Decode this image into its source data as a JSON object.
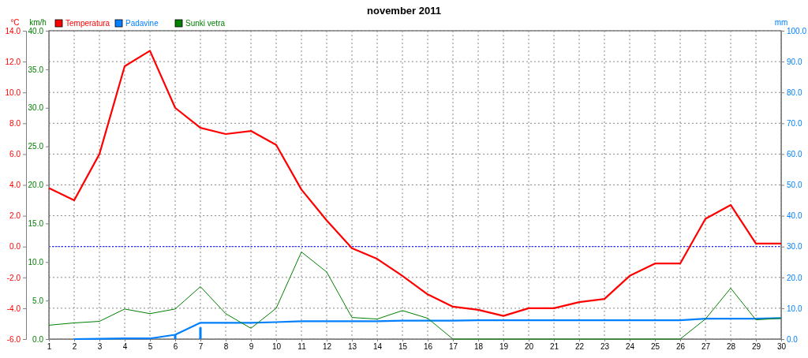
{
  "chart_data": {
    "type": "line",
    "title": "november 2011",
    "ylabel": "°C",
    "y2label": "km/h",
    "y3label": "mm",
    "x": [
      1,
      2,
      3,
      4,
      5,
      6,
      7,
      8,
      9,
      10,
      11,
      12,
      13,
      14,
      15,
      16,
      17,
      18,
      19,
      20,
      21,
      22,
      23,
      24,
      25,
      26,
      27,
      28,
      29,
      30
    ],
    "xlim": [
      1,
      30
    ],
    "xticks": [
      1,
      2,
      3,
      4,
      5,
      6,
      7,
      8,
      9,
      10,
      11,
      12,
      13,
      14,
      15,
      16,
      17,
      18,
      19,
      20,
      21,
      22,
      23,
      24,
      25,
      26,
      27,
      28,
      29,
      30
    ],
    "ylim": [
      -6,
      14
    ],
    "yticks": [
      {
        "value": -6,
        "label": "-6.0"
      },
      {
        "value": -4,
        "label": "-4.0"
      },
      {
        "value": -2,
        "label": "-2.0"
      },
      {
        "value": 0,
        "label": "0.0"
      },
      {
        "value": 2,
        "label": "2.0"
      },
      {
        "value": 4,
        "label": "4.0"
      },
      {
        "value": 6,
        "label": "6.0"
      },
      {
        "value": 8,
        "label": "8.0"
      },
      {
        "value": 10,
        "label": "10.0"
      },
      {
        "value": 12,
        "label": "12.0"
      },
      {
        "value": 14,
        "label": "14.0"
      }
    ],
    "y2lim": [
      0,
      40
    ],
    "y2ticks": [
      {
        "value": 0,
        "label": "0.0"
      },
      {
        "value": 5,
        "label": "5.0"
      },
      {
        "value": 10,
        "label": "10.0"
      },
      {
        "value": 15,
        "label": "15.0"
      },
      {
        "value": 20,
        "label": "20.0"
      },
      {
        "value": 25,
        "label": "25.0"
      },
      {
        "value": 30,
        "label": "30.0"
      },
      {
        "value": 35,
        "label": "35.0"
      },
      {
        "value": 40,
        "label": "40.0"
      }
    ],
    "y3lim": [
      0,
      100
    ],
    "y3ticks": [
      {
        "value": 0,
        "label": "0.0"
      },
      {
        "value": 10,
        "label": "10.0"
      },
      {
        "value": 20,
        "label": "20.0"
      },
      {
        "value": 30,
        "label": "30.0"
      },
      {
        "value": 40,
        "label": "40.0"
      },
      {
        "value": 50,
        "label": "50.0"
      },
      {
        "value": 60,
        "label": "60.0"
      },
      {
        "value": 70,
        "label": "70.0"
      },
      {
        "value": 80,
        "label": "80.0"
      },
      {
        "value": 90,
        "label": "90.0"
      },
      {
        "value": 100,
        "label": "100.0"
      }
    ],
    "grid": true,
    "legend": "top left",
    "line_style": "solid",
    "marker": "none",
    "ref_lines": [
      {
        "axis": "y",
        "value": 0,
        "color": "#0000ff",
        "line_style": "dotted"
      }
    ],
    "series": [
      {
        "name": "Temperatura",
        "color": "#ff0000",
        "axis": "y",
        "values": [
          3.8,
          3.0,
          6.0,
          11.7,
          12.7,
          9.0,
          7.7,
          7.3,
          7.5,
          6.6,
          3.7,
          1.7,
          -0.1,
          -0.8,
          -1.9,
          -3.1,
          -3.9,
          -4.1,
          -4.5,
          -4.0,
          -4.0,
          -3.6,
          -3.4,
          -1.9,
          -1.1,
          -1.1,
          1.8,
          2.7,
          0.2,
          0.2
        ]
      },
      {
        "name": "Padavine",
        "color": "#0080ff",
        "axis": "y3",
        "values": [
          null,
          0,
          0.1,
          0.2,
          0.2,
          1.4,
          5.3,
          5.3,
          5.3,
          5.5,
          5.8,
          5.8,
          5.8,
          5.8,
          6.0,
          6.0,
          6.0,
          6.1,
          6.1,
          6.1,
          6.1,
          6.1,
          6.1,
          6.1,
          6.1,
          6.1,
          6.6,
          6.6,
          6.6,
          6.8
        ]
      },
      {
        "type": "bar",
        "color": "#0080ff",
        "axis": "y3",
        "values": [
          null,
          null,
          null,
          null,
          null,
          1.4,
          3.8,
          null,
          null,
          null,
          null,
          null,
          null,
          null,
          null,
          null,
          null,
          null,
          null,
          null,
          null,
          null,
          null,
          null,
          null,
          null,
          null,
          null,
          null,
          null
        ]
      },
      {
        "name": "Sunki vetra",
        "color": "#008000",
        "axis": "y2",
        "values": [
          1.8,
          2.1,
          2.3,
          3.9,
          3.3,
          3.9,
          6.8,
          3.3,
          1.4,
          4.0,
          11.3,
          8.7,
          2.8,
          2.6,
          3.7,
          2.7,
          0,
          0,
          0,
          0,
          0,
          0,
          0,
          0,
          0,
          0,
          2.6,
          6.6,
          2.5,
          2.7
        ]
      }
    ]
  }
}
